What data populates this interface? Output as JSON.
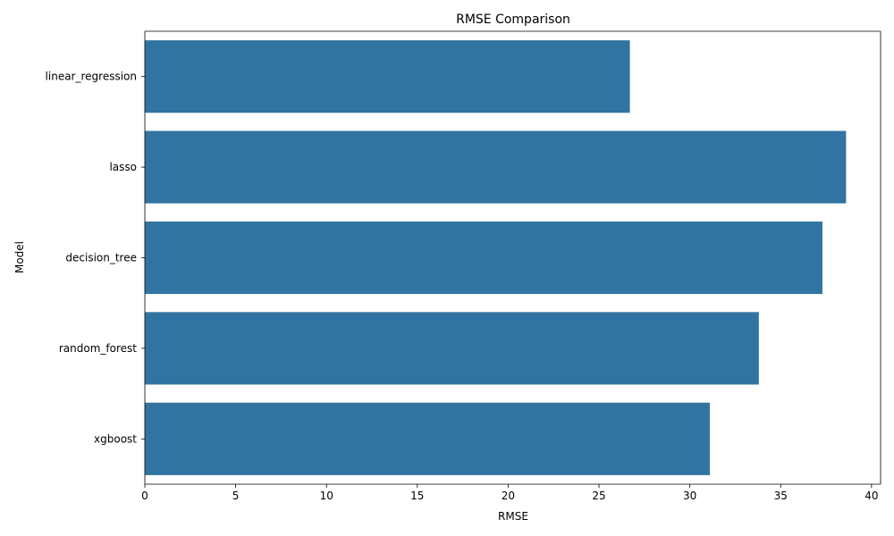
{
  "chart_data": {
    "type": "bar",
    "orientation": "horizontal",
    "title": "RMSE Comparison",
    "xlabel": "RMSE",
    "ylabel": "Model",
    "categories": [
      "linear_regression",
      "lasso",
      "decision_tree",
      "random_forest",
      "xgboost"
    ],
    "values": [
      26.7,
      38.6,
      37.3,
      33.8,
      31.1
    ],
    "xlim": [
      0,
      40.5
    ],
    "xticks": [
      0,
      5,
      10,
      15,
      20,
      25,
      30,
      35,
      40
    ],
    "grid": false,
    "bar_color": "#3274a1"
  }
}
